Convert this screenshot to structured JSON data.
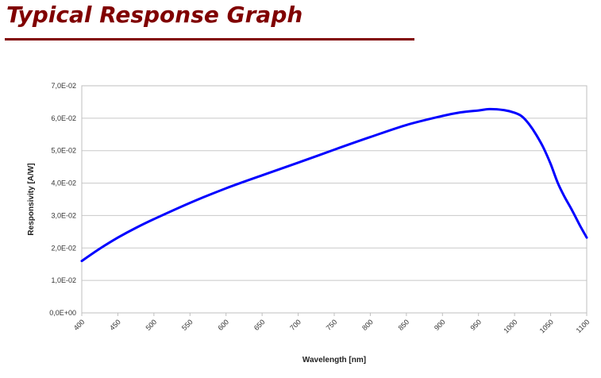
{
  "header": {
    "title": "Typical Response Graph",
    "title_color": "#800000",
    "rule_color": "#800000"
  },
  "chart_data": {
    "type": "line",
    "title": "",
    "xlabel": "Wavelength [nm]",
    "ylabel": "Responsivity [A/W]",
    "xlim": [
      400,
      1100
    ],
    "ylim": [
      0,
      0.07
    ],
    "x_ticks": [
      400,
      450,
      500,
      550,
      600,
      650,
      700,
      750,
      800,
      850,
      900,
      950,
      1000,
      1050,
      1100
    ],
    "x_tick_labels": [
      "400",
      "450",
      "500",
      "550",
      "600",
      "650",
      "700",
      "750",
      "800",
      "850",
      "900",
      "950",
      "1000",
      "1050",
      "1100"
    ],
    "y_ticks": [
      0,
      0.01,
      0.02,
      0.03,
      0.04,
      0.05,
      0.06,
      0.07
    ],
    "y_tick_labels": [
      "0,0E+00",
      "1,0E-02",
      "2,0E-02",
      "3,0E-02",
      "4,0E-02",
      "5,0E-02",
      "6,0E-02",
      "7,0E-02"
    ],
    "grid": "horizontal",
    "line_color": "#0000ff",
    "series": [
      {
        "x": [
          400,
          425,
          450,
          475,
          500,
          550,
          600,
          650,
          700,
          750,
          800,
          850,
          900,
          925,
          950,
          965,
          985,
          1000,
          1010,
          1020,
          1030,
          1040,
          1050,
          1060,
          1070,
          1080,
          1090,
          1100
        ],
        "values": [
          0.016,
          0.0198,
          0.0232,
          0.0262,
          0.0289,
          0.0339,
          0.0384,
          0.0424,
          0.0463,
          0.0503,
          0.0542,
          0.0579,
          0.0607,
          0.0618,
          0.0624,
          0.0628,
          0.0625,
          0.0617,
          0.0606,
          0.0582,
          0.0549,
          0.0509,
          0.0459,
          0.04,
          0.0355,
          0.0315,
          0.0272,
          0.0232
        ]
      }
    ]
  }
}
